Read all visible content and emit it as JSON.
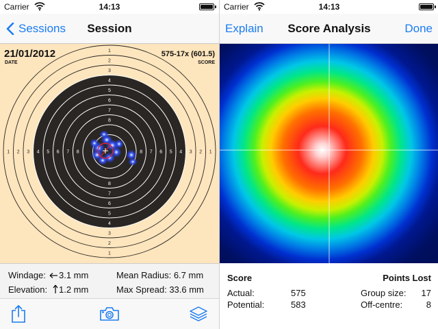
{
  "left_screen": {
    "status": {
      "carrier": "Carrier",
      "time": "14:13"
    },
    "nav": {
      "back_label": "Sessions",
      "title": "Session"
    },
    "sheet": {
      "date": "21/01/2012",
      "date_label": "DATE",
      "score": "575-17x (601.5)",
      "score_label": "SCORE",
      "ring_labels": [
        "1",
        "2",
        "3",
        "4",
        "5",
        "6",
        "7",
        "8"
      ]
    },
    "stats": {
      "windage_label": "Windage:",
      "windage_value": "3.1 mm",
      "elevation_label": "Elevation:",
      "elevation_value": "1.2 mm",
      "mean_radius": "Mean Radius: 6.7 mm",
      "max_spread": "Max Spread: 33.6 mm"
    },
    "toolbar": {
      "icons": [
        "share-icon",
        "camera-icon",
        "layers-icon"
      ]
    },
    "colors": {
      "accent": "#1a7cf2",
      "sheet": "#fde5bd",
      "black_ring": "#2a2623"
    }
  },
  "right_screen": {
    "status": {
      "carrier": "Carrier",
      "time": "14:13"
    },
    "nav": {
      "left_label": "Explain",
      "title": "Score Analysis",
      "right_label": "Done"
    },
    "analysis": {
      "score_header": "Score",
      "points_lost_header": "Points Lost",
      "actual_label": "Actual:",
      "actual_value": "575",
      "potential_label": "Potential:",
      "potential_value": "583",
      "group_size_label": "Group size:",
      "group_size_value": "17",
      "off_centre_label": "Off-centre:",
      "off_centre_value": "8"
    }
  }
}
